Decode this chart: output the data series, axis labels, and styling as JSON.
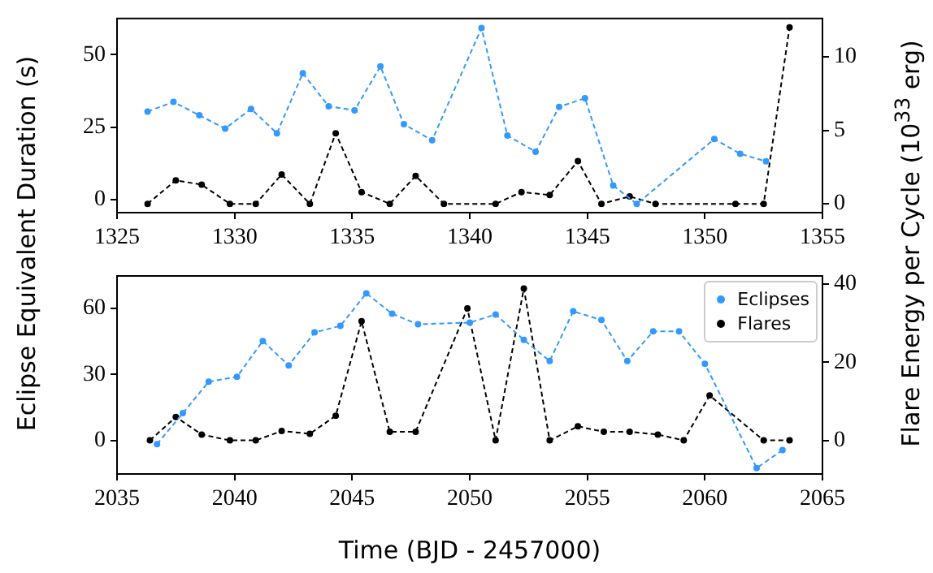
{
  "chart_data": [
    {
      "type": "line",
      "ylabel": "Eclipse Equivalent Duration (s)",
      "y2label": "Flare Energy per Cycle (10$^{33}$ erg)",
      "xlim": [
        1325,
        1355
      ],
      "xticks": [
        1325,
        1330,
        1335,
        1340,
        1345,
        1350,
        1355
      ],
      "ylim": [
        -4.5,
        62.5
      ],
      "yticks": [
        0,
        25,
        50
      ],
      "y2lim": [
        -0.6,
        12.6
      ],
      "y2ticks": [
        0,
        5,
        10
      ],
      "grid": false,
      "legend": false,
      "marker": "circle",
      "line_style": "dashed",
      "series": [
        {
          "color": "#3399ff",
          "x": [
            1326.3,
            1327.4,
            1328.5,
            1329.6,
            1330.7,
            1331.8,
            1332.9,
            1334.0,
            1335.1,
            1336.2,
            1337.2,
            1338.4,
            1340.5,
            1341.6,
            1342.8,
            1343.8,
            1344.9,
            1346.1,
            1347.1,
            1350.4,
            1351.5,
            1352.6
          ],
          "values": [
            30.4,
            33.7,
            29.1,
            24.5,
            31.3,
            22.9,
            43.6,
            32.2,
            30.8,
            46,
            26,
            20.5,
            59.2,
            22.1,
            16.5,
            32,
            35,
            4.9,
            -1.5,
            20.9,
            15.8,
            13.2
          ]
        },
        {
          "color": "#000000",
          "axis": "y2",
          "x": [
            1326.3,
            1327.5,
            1328.6,
            1329.8,
            1330.9,
            1332.0,
            1333.2,
            1334.3,
            1335.4,
            1336.6,
            1337.7,
            1338.9,
            1341.1,
            1342.2,
            1343.4,
            1344.6,
            1345.6,
            1346.8,
            1347.9,
            1351.3,
            1352.5,
            1353.6
          ],
          "values": [
            0,
            1.6,
            1.3,
            0,
            0,
            2.0,
            0,
            4.8,
            0.8,
            0,
            1.9,
            0,
            0,
            0.8,
            0.6,
            2.9,
            0,
            0.5,
            0,
            0,
            0,
            12
          ]
        }
      ]
    },
    {
      "type": "line",
      "xlabel": "Time (BJD - 2457000)",
      "xlim": [
        2035,
        2065
      ],
      "xticks": [
        2035,
        2040,
        2045,
        2050,
        2055,
        2060,
        2065
      ],
      "ylim": [
        -15.3,
        74.8
      ],
      "yticks": [
        0,
        30,
        60
      ],
      "y2lim": [
        -8.6,
        42.1
      ],
      "y2ticks": [
        0,
        20,
        40
      ],
      "grid": false,
      "legend": "top right",
      "marker": "circle",
      "line_style": "dashed",
      "series": [
        {
          "name": "Eclipses",
          "color": "#3399ff",
          "x": [
            2036.7,
            2037.8,
            2038.9,
            2040.1,
            2041.2,
            2042.3,
            2043.4,
            2044.5,
            2045.6,
            2046.7,
            2047.8,
            2050.0,
            2051.1,
            2052.3,
            2053.4,
            2054.4,
            2055.6,
            2056.7,
            2057.8,
            2058.9,
            2060.0,
            2062.2,
            2063.3
          ],
          "values": [
            -1.7,
            12.4,
            26.7,
            28.9,
            45.2,
            34.1,
            49.1,
            52.1,
            66.9,
            57.6,
            52.8,
            53.6,
            57.3,
            45.7,
            36.1,
            58.7,
            54.8,
            36.1,
            49.6,
            49.6,
            34.8,
            -12.6,
            -4.4
          ]
        },
        {
          "name": "Flares",
          "color": "#000000",
          "axis": "y2",
          "x": [
            2036.4,
            2037.5,
            2038.6,
            2039.8,
            2040.9,
            2042.0,
            2043.2,
            2044.3,
            2045.4,
            2046.6,
            2047.7,
            2049.9,
            2051.1,
            2052.3,
            2053.4,
            2054.6,
            2055.7,
            2056.8,
            2058.0,
            2059.1,
            2060.2,
            2062.5,
            2063.6
          ],
          "values": [
            0,
            6.0,
            1.5,
            0,
            0,
            2.4,
            1.7,
            6.3,
            30.5,
            2.2,
            2.2,
            33.8,
            0,
            38.9,
            0,
            3.6,
            2.2,
            2.2,
            1.5,
            0,
            11.5,
            0,
            0
          ]
        }
      ]
    }
  ]
}
